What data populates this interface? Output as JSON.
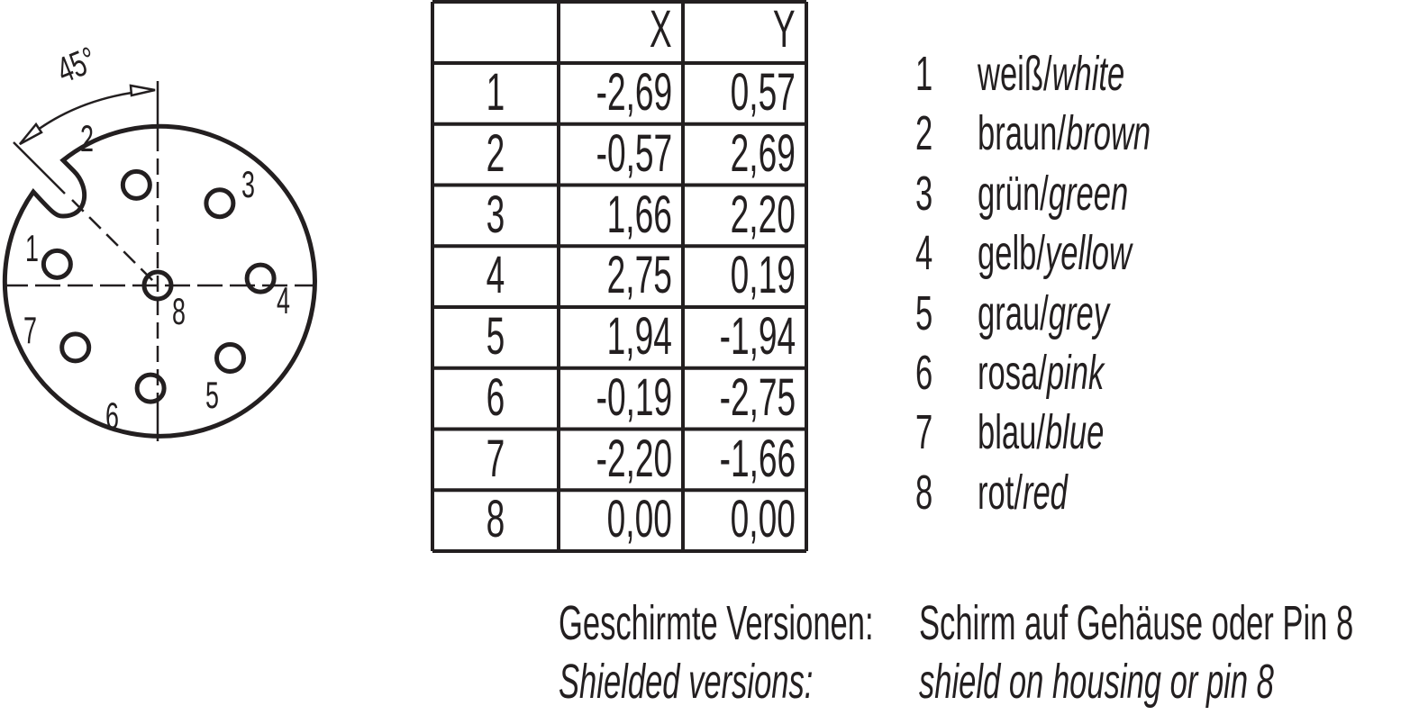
{
  "diagram": {
    "angle_label": "45°",
    "pins": [
      {
        "pin": "1",
        "x": -2.69,
        "y": 0.57
      },
      {
        "pin": "2",
        "x": -0.57,
        "y": 2.69
      },
      {
        "pin": "3",
        "x": 1.66,
        "y": 2.2
      },
      {
        "pin": "4",
        "x": 2.75,
        "y": 0.19
      },
      {
        "pin": "5",
        "x": 1.94,
        "y": -1.94
      },
      {
        "pin": "6",
        "x": -0.19,
        "y": -2.75
      },
      {
        "pin": "7",
        "x": -2.2,
        "y": -1.66
      },
      {
        "pin": "8",
        "x": 0.0,
        "y": 0.0
      }
    ]
  },
  "table": {
    "headers": [
      "",
      "X",
      "Y"
    ],
    "rows": [
      [
        "1",
        "-2,69",
        "0,57"
      ],
      [
        "2",
        "-0,57",
        "2,69"
      ],
      [
        "3",
        "1,66",
        "2,20"
      ],
      [
        "4",
        "2,75",
        "0,19"
      ],
      [
        "5",
        "1,94",
        "-1,94"
      ],
      [
        "6",
        "-0,19",
        "-2,75"
      ],
      [
        "7",
        "-2,20",
        "-1,66"
      ],
      [
        "8",
        "0,00",
        "0,00"
      ]
    ]
  },
  "legend": [
    {
      "pin": "1",
      "de": "weiß",
      "en": "white"
    },
    {
      "pin": "2",
      "de": "braun",
      "en": "brown"
    },
    {
      "pin": "3",
      "de": "grün",
      "en": "green"
    },
    {
      "pin": "4",
      "de": "gelb",
      "en": "yellow"
    },
    {
      "pin": "5",
      "de": "grau",
      "en": "grey"
    },
    {
      "pin": "6",
      "de": "rosa",
      "en": "pink"
    },
    {
      "pin": "7",
      "de": "blau",
      "en": "blue"
    },
    {
      "pin": "8",
      "de": "rot",
      "en": "red"
    }
  ],
  "note": {
    "de_label": "Geschirmte Versionen:",
    "de_text": "Schirm auf Gehäuse oder Pin 8",
    "en_label": "Shielded versions:",
    "en_text": "shield on housing or pin 8"
  }
}
